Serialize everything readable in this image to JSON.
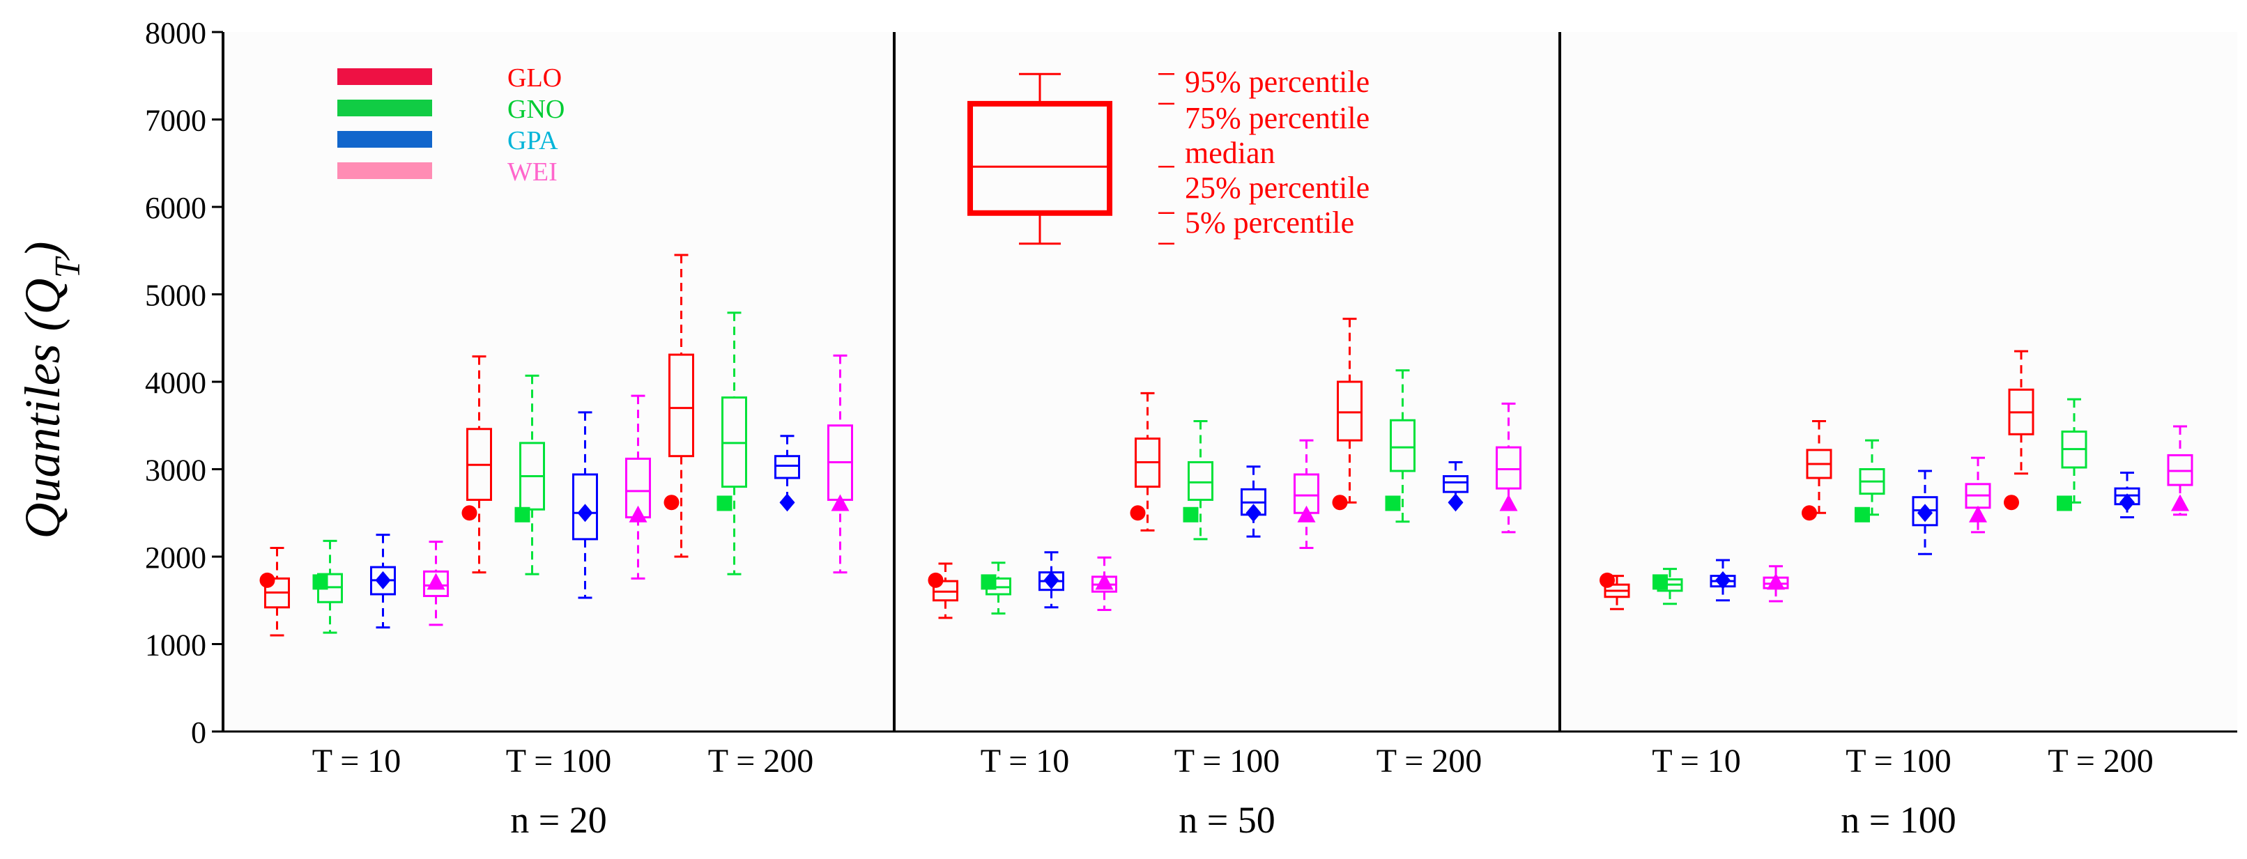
{
  "chart_data": {
    "type": "boxplot",
    "ylabel": "Quantiles (Q",
    "ylabel_sub": "T",
    "ylabel_close": ")",
    "ylim": [
      0,
      8000
    ],
    "yticks": [
      0,
      1000,
      2000,
      3000,
      4000,
      5000,
      6000,
      7000,
      8000
    ],
    "grid": false,
    "colors": {
      "GLO": "#ff0000",
      "GNO": "#00e23a",
      "GPA": "#0000ff",
      "WEI": "#ff00ff"
    },
    "legend": {
      "placement": "top-left",
      "entries": [
        {
          "name": "GLO",
          "bar_color": "#ee1144",
          "text_color": "#ff0000"
        },
        {
          "name": "GNO",
          "bar_color": "#11cc44",
          "text_color": "#00cc33"
        },
        {
          "name": "GPA",
          "bar_color": "#1166cc",
          "text_color": "#00b4d8"
        },
        {
          "name": "WEI",
          "bar_color": "#ff8cb4",
          "text_color": "#ff66cc"
        }
      ]
    },
    "box_key": {
      "labels": [
        "95% percentile",
        "75% percentile",
        "median",
        "25% percentile",
        "5% percentile"
      ],
      "values": {
        "p5": 5580,
        "p25": 5930,
        "median": 6460,
        "p75": 7180,
        "p95": 7520
      },
      "color": "#ff0000"
    },
    "distributions": [
      "GLO",
      "GNO",
      "GPA",
      "WEI"
    ],
    "panels": [
      {
        "label": "n = 20",
        "groups": [
          {
            "label": "T = 10",
            "boxes": [
              {
                "dist": "GLO",
                "p5": 1100,
                "p25": 1420,
                "median": 1590,
                "p75": 1750,
                "p95": 2100,
                "true": 1730
              },
              {
                "dist": "GNO",
                "p5": 1130,
                "p25": 1480,
                "median": 1650,
                "p75": 1800,
                "p95": 2180,
                "true": 1710
              },
              {
                "dist": "GPA",
                "p5": 1190,
                "p25": 1570,
                "median": 1730,
                "p75": 1880,
                "p95": 2250,
                "true": 1730
              },
              {
                "dist": "WEI",
                "p5": 1220,
                "p25": 1550,
                "median": 1670,
                "p75": 1830,
                "p95": 2170,
                "true": 1710
              }
            ]
          },
          {
            "label": "T = 100",
            "boxes": [
              {
                "dist": "GLO",
                "p5": 1820,
                "p25": 2650,
                "median": 3050,
                "p75": 3460,
                "p95": 4290,
                "true": 2500
              },
              {
                "dist": "GNO",
                "p5": 1800,
                "p25": 2540,
                "median": 2920,
                "p75": 3300,
                "p95": 4070,
                "true": 2480
              },
              {
                "dist": "GPA",
                "p5": 1530,
                "p25": 2200,
                "median": 2500,
                "p75": 2940,
                "p95": 3650,
                "true": 2500
              },
              {
                "dist": "WEI",
                "p5": 1750,
                "p25": 2450,
                "median": 2750,
                "p75": 3120,
                "p95": 3840,
                "true": 2480
              }
            ]
          },
          {
            "label": "T = 200",
            "boxes": [
              {
                "dist": "GLO",
                "p5": 2000,
                "p25": 3150,
                "median": 3700,
                "p75": 4310,
                "p95": 5450,
                "true": 2620
              },
              {
                "dist": "GNO",
                "p5": 1800,
                "p25": 2800,
                "median": 3300,
                "p75": 3820,
                "p95": 4790,
                "true": 2610
              },
              {
                "dist": "GPA",
                "p5": 2620,
                "p25": 2900,
                "median": 3040,
                "p75": 3150,
                "p95": 3380,
                "true": 2620
              },
              {
                "dist": "WEI",
                "p5": 1820,
                "p25": 2650,
                "median": 3080,
                "p75": 3500,
                "p95": 4300,
                "true": 2610
              }
            ]
          }
        ]
      },
      {
        "label": "n = 50",
        "groups": [
          {
            "label": "T = 10",
            "boxes": [
              {
                "dist": "GLO",
                "p5": 1300,
                "p25": 1500,
                "median": 1600,
                "p75": 1720,
                "p95": 1920,
                "true": 1730
              },
              {
                "dist": "GNO",
                "p5": 1350,
                "p25": 1570,
                "median": 1650,
                "p75": 1750,
                "p95": 1930,
                "true": 1710
              },
              {
                "dist": "GPA",
                "p5": 1420,
                "p25": 1620,
                "median": 1720,
                "p75": 1820,
                "p95": 2050,
                "true": 1730
              },
              {
                "dist": "WEI",
                "p5": 1390,
                "p25": 1600,
                "median": 1680,
                "p75": 1770,
                "p95": 1990,
                "true": 1710
              }
            ]
          },
          {
            "label": "T = 100",
            "boxes": [
              {
                "dist": "GLO",
                "p5": 2300,
                "p25": 2800,
                "median": 3080,
                "p75": 3350,
                "p95": 3870,
                "true": 2500
              },
              {
                "dist": "GNO",
                "p5": 2200,
                "p25": 2650,
                "median": 2850,
                "p75": 3080,
                "p95": 3550,
                "true": 2480
              },
              {
                "dist": "GPA",
                "p5": 2230,
                "p25": 2480,
                "median": 2620,
                "p75": 2770,
                "p95": 3030,
                "true": 2500
              },
              {
                "dist": "WEI",
                "p5": 2100,
                "p25": 2500,
                "median": 2700,
                "p75": 2940,
                "p95": 3330,
                "true": 2480
              }
            ]
          },
          {
            "label": "T = 200",
            "boxes": [
              {
                "dist": "GLO",
                "p5": 2620,
                "p25": 3330,
                "median": 3650,
                "p75": 4000,
                "p95": 4720,
                "true": 2620
              },
              {
                "dist": "GNO",
                "p5": 2400,
                "p25": 2980,
                "median": 3250,
                "p75": 3560,
                "p95": 4130,
                "true": 2610
              },
              {
                "dist": "GPA",
                "p5": 2620,
                "p25": 2740,
                "median": 2850,
                "p75": 2920,
                "p95": 3080,
                "true": 2620
              },
              {
                "dist": "WEI",
                "p5": 2280,
                "p25": 2780,
                "median": 3000,
                "p75": 3250,
                "p95": 3750,
                "true": 2610
              }
            ]
          }
        ]
      },
      {
        "label": "n = 100",
        "groups": [
          {
            "label": "T = 10",
            "boxes": [
              {
                "dist": "GLO",
                "p5": 1400,
                "p25": 1540,
                "median": 1610,
                "p75": 1680,
                "p95": 1780,
                "true": 1730
              },
              {
                "dist": "GNO",
                "p5": 1460,
                "p25": 1610,
                "median": 1680,
                "p75": 1740,
                "p95": 1860,
                "true": 1710
              },
              {
                "dist": "GPA",
                "p5": 1500,
                "p25": 1660,
                "median": 1720,
                "p75": 1780,
                "p95": 1960,
                "true": 1730
              },
              {
                "dist": "WEI",
                "p5": 1490,
                "p25": 1640,
                "median": 1690,
                "p75": 1760,
                "p95": 1890,
                "true": 1710
              }
            ]
          },
          {
            "label": "T = 100",
            "boxes": [
              {
                "dist": "GLO",
                "p5": 2500,
                "p25": 2900,
                "median": 3060,
                "p75": 3220,
                "p95": 3550,
                "true": 2500
              },
              {
                "dist": "GNO",
                "p5": 2480,
                "p25": 2720,
                "median": 2860,
                "p75": 3000,
                "p95": 3330,
                "true": 2480
              },
              {
                "dist": "GPA",
                "p5": 2030,
                "p25": 2360,
                "median": 2530,
                "p75": 2680,
                "p95": 2980,
                "true": 2500
              },
              {
                "dist": "WEI",
                "p5": 2280,
                "p25": 2560,
                "median": 2700,
                "p75": 2830,
                "p95": 3130,
                "true": 2480
              }
            ]
          },
          {
            "label": "T = 200",
            "boxes": [
              {
                "dist": "GLO",
                "p5": 2950,
                "p25": 3400,
                "median": 3650,
                "p75": 3910,
                "p95": 4350,
                "true": 2620
              },
              {
                "dist": "GNO",
                "p5": 2620,
                "p25": 3020,
                "median": 3230,
                "p75": 3430,
                "p95": 3800,
                "true": 2610
              },
              {
                "dist": "GPA",
                "p5": 2450,
                "p25": 2600,
                "median": 2700,
                "p75": 2780,
                "p95": 2960,
                "true": 2620
              },
              {
                "dist": "WEI",
                "p5": 2480,
                "p25": 2820,
                "median": 2980,
                "p75": 3160,
                "p95": 3490,
                "true": 2610
              }
            ]
          }
        ]
      }
    ]
  }
}
